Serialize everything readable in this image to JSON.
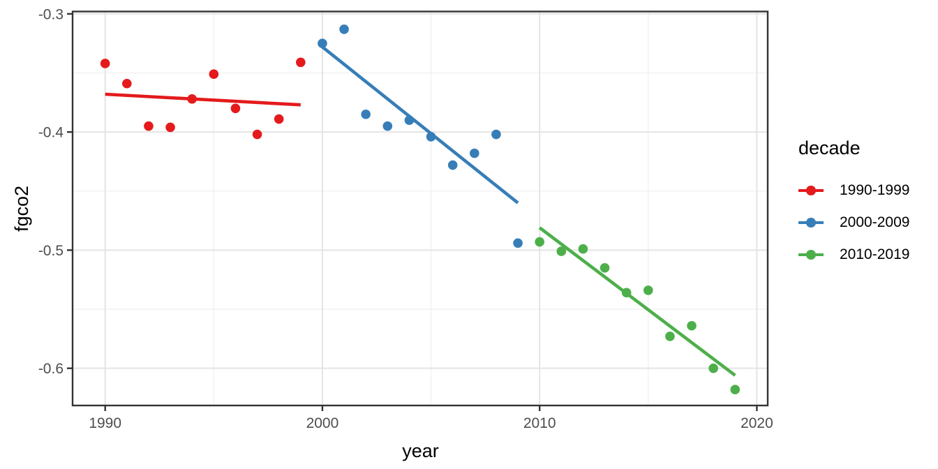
{
  "figure": {
    "y_axis_title": "fgco2",
    "x_axis_title": "year",
    "legend_title": "decade",
    "theme": {
      "background": "#FFFFFF",
      "panel_border": "#333333",
      "grid_major": "#E4E4E4",
      "grid_minor": "#F0F0F0",
      "tick_color": "#333333",
      "tick_label_color": "#4D4D4D",
      "title_color": "#000000"
    }
  },
  "chart_data": {
    "type": "scatter",
    "title": "",
    "xlabel": "year",
    "ylabel": "fgco2",
    "legend_title": "decade",
    "legend_position": "right",
    "grid": true,
    "xlim": [
      1988.5,
      2020.5
    ],
    "ylim": [
      -0.6315,
      -0.298
    ],
    "x_ticks": [
      {
        "value": 1990,
        "label": "1990"
      },
      {
        "value": 2000,
        "label": "2000"
      },
      {
        "value": 2010,
        "label": "2010"
      },
      {
        "value": 2020,
        "label": "2020"
      }
    ],
    "x_minor_gridlines": [
      1995,
      2005,
      2015
    ],
    "y_ticks": [
      {
        "value": -0.3,
        "label": "-0.3"
      },
      {
        "value": -0.4,
        "label": "-0.4"
      },
      {
        "value": -0.5,
        "label": "-0.5"
      },
      {
        "value": -0.6,
        "label": "-0.6"
      }
    ],
    "y_minor_gridlines": [
      -0.35,
      -0.45,
      -0.55
    ],
    "series": [
      {
        "name": "1990-1999",
        "color": "#E41A1C",
        "x": [
          1990,
          1991,
          1992,
          1993,
          1994,
          1995,
          1996,
          1997,
          1998,
          1999
        ],
        "y": [
          -0.342,
          -0.359,
          -0.395,
          -0.396,
          -0.372,
          -0.351,
          -0.38,
          -0.402,
          -0.389,
          -0.341
        ],
        "trend_line": {
          "x": [
            1990,
            1999
          ],
          "y": [
            -0.368,
            -0.377
          ]
        }
      },
      {
        "name": "2000-2009",
        "color": "#377EB8",
        "x": [
          2000,
          2001,
          2002,
          2003,
          2004,
          2005,
          2006,
          2007,
          2008,
          2009
        ],
        "y": [
          -0.325,
          -0.313,
          -0.385,
          -0.395,
          -0.39,
          -0.404,
          -0.428,
          -0.418,
          -0.402,
          -0.494
        ],
        "trend_line": {
          "x": [
            2000,
            2009
          ],
          "y": [
            -0.328,
            -0.46
          ]
        }
      },
      {
        "name": "2010-2019",
        "color": "#4DAF4A",
        "x": [
          2010,
          2011,
          2012,
          2013,
          2014,
          2015,
          2016,
          2017,
          2018,
          2019
        ],
        "y": [
          -0.493,
          -0.501,
          -0.499,
          -0.515,
          -0.536,
          -0.534,
          -0.573,
          -0.564,
          -0.6,
          -0.618
        ],
        "trend_line": {
          "x": [
            2010,
            2019
          ],
          "y": [
            -0.481,
            -0.606
          ]
        }
      }
    ]
  }
}
